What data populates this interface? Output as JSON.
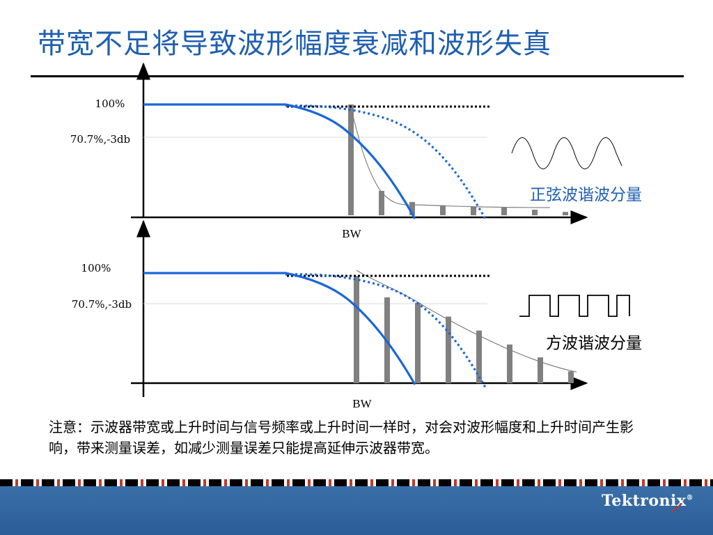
{
  "title": "带宽不足将导致波形幅度衰减和波形失真",
  "top_panel": {
    "label_100": "100%",
    "label_707": "70.7%,-3db",
    "bw_label": "BW",
    "caption": "正弦波谐波分量"
  },
  "bottom_panel": {
    "label_100": "100%",
    "label_707": "70.7%,-3db",
    "bw_label": "BW",
    "caption": "方波谐波分量"
  },
  "note": "注意：示波器带宽或上升时间与信号频率或上升时间一样时，对会对波形幅度和上升时间产生影响，带来测量误差，如减少测量误差只能提高延伸示波器带宽。",
  "footer": {
    "logo": "Tektronix"
  },
  "colors": {
    "accent": "#1f5fb0",
    "curve": "#1a66d9",
    "bar": "#808080"
  },
  "top_harmonics": [
    1.0,
    0.22,
    0.12,
    0.09,
    0.08,
    0.07,
    0.05,
    0.03
  ],
  "bottom_harmonics": [
    1.0,
    0.8,
    0.75,
    0.62,
    0.49,
    0.36,
    0.24,
    0.11
  ]
}
